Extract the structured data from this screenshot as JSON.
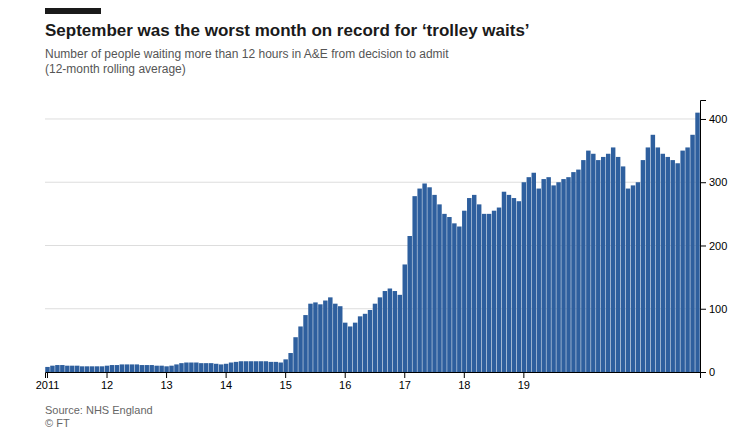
{
  "chart_data": {
    "type": "bar",
    "title": "September was the worst month on record for ‘trolley waits’",
    "subtitle": "Number of people waiting more than 12 hours in A&E from decision to admit\n(12-month rolling average)",
    "source": "Source: NHS England\n© FT",
    "color": "#2e5f9e",
    "grid": true,
    "ylim": [
      0,
      430
    ],
    "yticks": [
      0,
      100,
      200,
      300,
      400
    ],
    "categories": [
      "2011",
      null,
      null,
      null,
      null,
      null,
      null,
      null,
      null,
      null,
      null,
      null,
      "12",
      null,
      null,
      null,
      null,
      null,
      null,
      null,
      null,
      null,
      null,
      null,
      "13",
      null,
      null,
      null,
      null,
      null,
      null,
      null,
      null,
      null,
      null,
      null,
      "14",
      null,
      null,
      null,
      null,
      null,
      null,
      null,
      null,
      null,
      null,
      null,
      "15",
      null,
      null,
      null,
      null,
      null,
      null,
      null,
      null,
      null,
      null,
      null,
      "16",
      null,
      null,
      null,
      null,
      null,
      null,
      null,
      null,
      null,
      null,
      null,
      "17",
      null,
      null,
      null,
      null,
      null,
      null,
      null,
      null,
      null,
      null,
      null,
      "18",
      null,
      null,
      null,
      null,
      null,
      null,
      null,
      null,
      null,
      null,
      null,
      "19",
      null,
      null,
      null,
      null,
      null,
      null,
      null,
      null,
      null,
      null,
      null,
      null,
      null,
      null,
      null,
      null,
      null,
      null,
      null,
      null,
      null,
      null,
      null,
      null,
      null,
      null,
      null,
      null,
      null,
      null,
      null,
      null,
      null,
      null,
      null
    ],
    "values": [
      8,
      10,
      11,
      11,
      10,
      10,
      10,
      9,
      9,
      9,
      9,
      9,
      10,
      11,
      11,
      12,
      12,
      12,
      12,
      11,
      11,
      11,
      10,
      10,
      9,
      10,
      12,
      14,
      15,
      15,
      15,
      14,
      14,
      14,
      13,
      12,
      13,
      15,
      16,
      17,
      17,
      17,
      17,
      17,
      17,
      16,
      16,
      15,
      20,
      30,
      55,
      72,
      90,
      108,
      110,
      107,
      113,
      118,
      108,
      104,
      78,
      72,
      78,
      88,
      92,
      98,
      108,
      118,
      128,
      132,
      128,
      122,
      170,
      215,
      278,
      290,
      298,
      292,
      280,
      265,
      250,
      245,
      235,
      230,
      255,
      275,
      280,
      265,
      250,
      250,
      255,
      260,
      285,
      280,
      275,
      270,
      300,
      308,
      315,
      290,
      305,
      308,
      295,
      300,
      305,
      308,
      316,
      320,
      335,
      350,
      345,
      335,
      340,
      345,
      355,
      340,
      325,
      290,
      295,
      300,
      335,
      355,
      375,
      355,
      345,
      340,
      335,
      330,
      350,
      355,
      375,
      410
    ]
  }
}
